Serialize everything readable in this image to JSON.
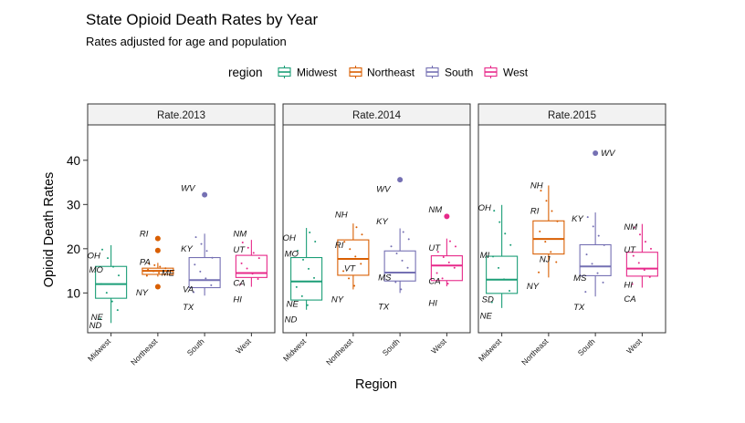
{
  "chart_data": {
    "type": "boxplot",
    "title": "State Opioid Death Rates by Year",
    "subtitle": "Rates adjusted for age and population",
    "xlabel": "Region",
    "ylabel": "Opioid Death Rates",
    "ylim": [
      1,
      48
    ],
    "yticks": [
      10,
      20,
      30,
      40
    ],
    "grid": false,
    "legend": {
      "title": "region",
      "position": "top",
      "entries": [
        "Midwest",
        "Northeast",
        "South",
        "West"
      ]
    },
    "colors": {
      "Midwest": "#1b9e77",
      "Northeast": "#d95f02",
      "South": "#7570b3",
      "West": "#e7298a"
    },
    "categories": [
      "Midwest",
      "Northeast",
      "South",
      "West"
    ],
    "facets": [
      {
        "name": "Rate.2013",
        "boxes": [
          {
            "region": "Midwest",
            "min": 3.2,
            "q1": 8.8,
            "median": 12.0,
            "q3": 16.0,
            "max": 20.8
          },
          {
            "region": "Northeast",
            "min": 13.7,
            "q1": 14.2,
            "median": 15.0,
            "q3": 15.6,
            "max": 16.8
          },
          {
            "region": "South",
            "min": 9.4,
            "q1": 11.2,
            "median": 12.9,
            "q3": 18.0,
            "max": 23.4
          },
          {
            "region": "West",
            "min": 11.4,
            "q1": 13.5,
            "median": 14.5,
            "q3": 18.5,
            "max": 22.0
          }
        ],
        "outliers": [
          {
            "region": "Northeast",
            "value": 22.3
          },
          {
            "region": "Northeast",
            "value": 19.6
          },
          {
            "region": "Northeast",
            "value": 11.4
          },
          {
            "region": "South",
            "value": 32.2
          }
        ],
        "labels": [
          {
            "text": "OH",
            "region": "Midwest",
            "value": 18.4
          },
          {
            "text": "MO",
            "region": "Midwest",
            "value": 15.2
          },
          {
            "text": "NE",
            "region": "Midwest",
            "value": 4.5
          },
          {
            "text": "ND",
            "region": "Midwest",
            "value": 2.6
          },
          {
            "text": "RI",
            "region": "Northeast",
            "value": 23.4
          },
          {
            "text": "PA",
            "region": "Northeast",
            "value": 17.0
          },
          {
            "text": "ME",
            "region": "Northeast",
            "value": 14.5
          },
          {
            "text": "NY",
            "region": "Northeast",
            "value": 10.1
          },
          {
            "text": "WV",
            "region": "South",
            "value": 33.7
          },
          {
            "text": "KY",
            "region": "South",
            "value": 20.0
          },
          {
            "text": "VA",
            "region": "South",
            "value": 10.8
          },
          {
            "text": "TX",
            "region": "South",
            "value": 6.8
          },
          {
            "text": "NM",
            "region": "West",
            "value": 23.4
          },
          {
            "text": "UT",
            "region": "West",
            "value": 19.8
          },
          {
            "text": "CA",
            "region": "West",
            "value": 12.2
          },
          {
            "text": "HI",
            "region": "West",
            "value": 8.5
          }
        ]
      },
      {
        "name": "Rate.2014",
        "boxes": [
          {
            "region": "Midwest",
            "min": 6.2,
            "q1": 8.4,
            "median": 12.6,
            "q3": 18.0,
            "max": 24.7
          },
          {
            "region": "Northeast",
            "min": 10.8,
            "q1": 14.0,
            "median": 17.7,
            "q3": 22.0,
            "max": 25.7
          },
          {
            "region": "South",
            "min": 10.0,
            "q1": 12.7,
            "median": 14.6,
            "q3": 19.5,
            "max": 24.6
          },
          {
            "region": "West",
            "min": 11.5,
            "q1": 12.8,
            "median": 16.2,
            "q3": 18.4,
            "max": 22.3
          }
        ],
        "outliers": [
          {
            "region": "South",
            "value": 35.6
          },
          {
            "region": "West",
            "value": 27.3
          }
        ],
        "labels": [
          {
            "text": "OH",
            "region": "Midwest",
            "value": 22.4
          },
          {
            "text": "MO",
            "region": "Midwest",
            "value": 18.8
          },
          {
            "text": "NE",
            "region": "Midwest",
            "value": 7.5
          },
          {
            "text": "ND",
            "region": "Midwest",
            "value": 4.0
          },
          {
            "text": "NH",
            "region": "Northeast",
            "value": 27.7
          },
          {
            "text": "RI",
            "region": "Northeast",
            "value": 20.8
          },
          {
            "text": "VT",
            "region": "Northeast",
            "value": 15.5
          },
          {
            "text": "NY",
            "region": "Northeast",
            "value": 8.5
          },
          {
            "text": "WV",
            "region": "South",
            "value": 33.5
          },
          {
            "text": "KY",
            "region": "South",
            "value": 26.2
          },
          {
            "text": "MS",
            "region": "South",
            "value": 13.5
          },
          {
            "text": "TX",
            "region": "South",
            "value": 6.9
          },
          {
            "text": "NM",
            "region": "West",
            "value": 28.8
          },
          {
            "text": "UT",
            "region": "West",
            "value": 20.2
          },
          {
            "text": "CA",
            "region": "West",
            "value": 12.6
          },
          {
            "text": "HI",
            "region": "West",
            "value": 7.7
          }
        ]
      },
      {
        "name": "Rate.2015",
        "boxes": [
          {
            "region": "Midwest",
            "min": 6.6,
            "q1": 9.9,
            "median": 13.0,
            "q3": 18.3,
            "max": 29.9
          },
          {
            "region": "Northeast",
            "min": 13.5,
            "q1": 18.8,
            "median": 22.2,
            "q3": 26.3,
            "max": 34.3
          },
          {
            "region": "South",
            "min": 9.2,
            "q1": 13.9,
            "median": 16.0,
            "q3": 20.9,
            "max": 28.2
          },
          {
            "region": "West",
            "min": 11.2,
            "q1": 13.8,
            "median": 15.5,
            "q3": 19.2,
            "max": 25.6
          }
        ],
        "outliers": [
          {
            "region": "South",
            "value": 41.6
          }
        ],
        "labels": [
          {
            "text": "OH",
            "region": "Midwest",
            "value": 29.2
          },
          {
            "text": "MI",
            "region": "Midwest",
            "value": 18.5
          },
          {
            "text": "SD",
            "region": "Midwest",
            "value": 8.5
          },
          {
            "text": "NE",
            "region": "Midwest",
            "value": 4.8
          },
          {
            "text": "NH",
            "region": "Northeast",
            "value": 34.3
          },
          {
            "text": "RI",
            "region": "Northeast",
            "value": 28.5
          },
          {
            "text": "NJ",
            "region": "Northeast",
            "value": 17.6
          },
          {
            "text": "NY",
            "region": "Northeast",
            "value": 11.5
          },
          {
            "text": "WV",
            "region": "South",
            "value": 41.6
          },
          {
            "text": "KY",
            "region": "South",
            "value": 26.8
          },
          {
            "text": "MS",
            "region": "South",
            "value": 13.4
          },
          {
            "text": "TX",
            "region": "South",
            "value": 6.8
          },
          {
            "text": "NM",
            "region": "West",
            "value": 24.9
          },
          {
            "text": "UT",
            "region": "West",
            "value": 19.8
          },
          {
            "text": "HI",
            "region": "West",
            "value": 11.8
          },
          {
            "text": "CA",
            "region": "West",
            "value": 8.6
          }
        ]
      }
    ]
  }
}
